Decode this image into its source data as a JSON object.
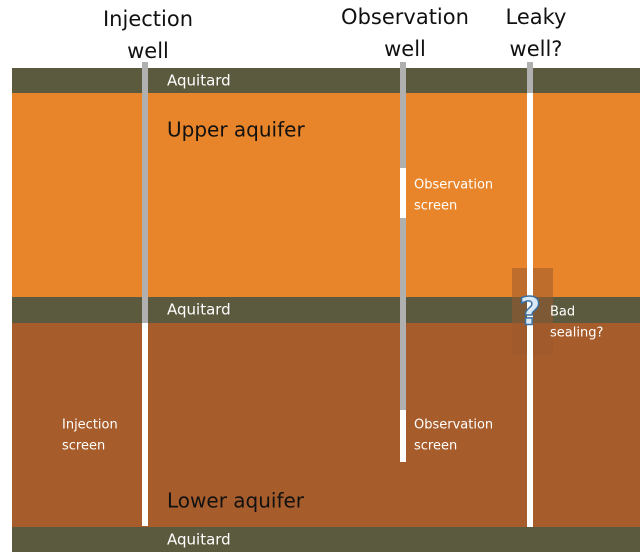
{
  "wells": [
    {
      "label": [
        "Injection",
        "well"
      ]
    },
    {
      "label": [
        "Observation",
        "well"
      ]
    },
    {
      "label": [
        "Leaky",
        "well?"
      ]
    }
  ],
  "layers": {
    "top_aquitard": "Aquitard",
    "upper_aquifer": "Upper aquifer",
    "middle_aquitard": "Aquitard",
    "lower_aquifer": "Lower aquifer",
    "bottom_aquitard": "Aquitard"
  },
  "annotations": {
    "injection_screen": [
      "Injection",
      "screen"
    ],
    "observation_screen_upper": [
      "Observation",
      "screen"
    ],
    "observation_screen_lower": [
      "Observation",
      "screen"
    ],
    "bad_sealing": [
      "Bad",
      "sealing?"
    ],
    "question_mark": "?"
  }
}
